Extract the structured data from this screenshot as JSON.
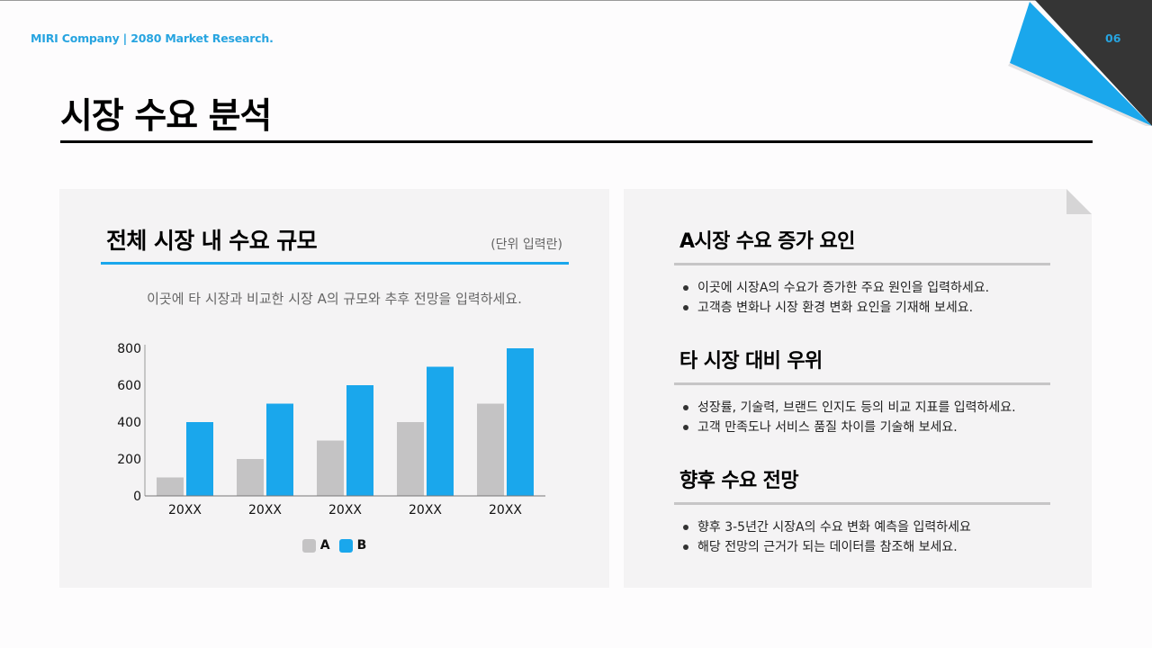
{
  "header": {
    "label": "MIRI Company  |  2080 Market Research.",
    "page_number": "06"
  },
  "page": {
    "title": "시장 수요 분석"
  },
  "colors": {
    "accent": "#1aa7ec",
    "series_a": "#c4c3c4",
    "series_b": "#1aa7ec",
    "corner_dark": "#353535",
    "panel_bg": "#f4f3f4"
  },
  "left_panel": {
    "title": "전체 시장 내 수요 규모",
    "unit": "(단위 입력란)",
    "description": "이곳에 타 시장과 비교한 시장 A의 규모와 추후 전망을 입력하세요."
  },
  "chart_data": {
    "type": "bar",
    "title": "전체 시장 내 수요 규모",
    "categories": [
      "20XX",
      "20XX",
      "20XX",
      "20XX",
      "20XX"
    ],
    "series": [
      {
        "name": "A",
        "color": "#c4c3c4",
        "values": [
          100,
          200,
          300,
          400,
          500
        ]
      },
      {
        "name": "B",
        "color": "#1aa7ec",
        "values": [
          400,
          500,
          600,
          700,
          800
        ]
      }
    ],
    "xlabel": "",
    "ylabel": "",
    "ylim": [
      0,
      800
    ],
    "yticks": [
      0,
      200,
      400,
      600,
      800
    ],
    "grid": false,
    "legend_position": "bottom"
  },
  "legend": {
    "a_label": "A",
    "b_label": "B"
  },
  "right_panel": {
    "sections": [
      {
        "title": "A시장 수요 증가 요인",
        "items": [
          "이곳에 시장A의 수요가 증가한 주요 원인을 입력하세요.",
          "고객층 변화나 시장 환경 변화 요인을 기재해 보세요."
        ]
      },
      {
        "title": "타 시장 대비 우위",
        "items": [
          "성장률, 기술력, 브랜드 인지도 등의 비교 지표를 입력하세요.",
          "고객 만족도나 서비스 품질 차이를 기술해 보세요."
        ]
      },
      {
        "title": "향후 수요 전망",
        "items": [
          "향후 3-5년간 시장A의 수요 변화 예측을 입력하세요",
          "해당 전망의 근거가 되는 데이터를 참조해 보세요."
        ]
      }
    ]
  }
}
